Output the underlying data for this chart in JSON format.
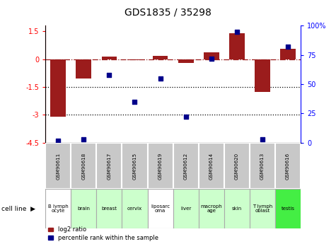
{
  "title": "GDS1835 / 35298",
  "samples": [
    "GSM90611",
    "GSM90618",
    "GSM90617",
    "GSM90615",
    "GSM90619",
    "GSM90612",
    "GSM90614",
    "GSM90620",
    "GSM90613",
    "GSM90616"
  ],
  "cell_lines": [
    "B lymph\nocyte",
    "brain",
    "breast",
    "cervix",
    "liposarc\noma",
    "liver",
    "macroph\nage",
    "skin",
    "T lymph\noblast",
    "testis"
  ],
  "log2_ratio": [
    -3.1,
    -1.05,
    0.12,
    -0.05,
    0.18,
    -0.2,
    0.35,
    1.4,
    -1.75,
    0.55
  ],
  "percentile_rank": [
    2,
    3,
    58,
    35,
    55,
    22,
    72,
    95,
    3,
    82
  ],
  "ylim_left": [
    -4.5,
    1.8
  ],
  "ylim_right": [
    0,
    100
  ],
  "left_yticks": [
    1.5,
    0,
    -1.5,
    -3.0,
    -4.5
  ],
  "left_yticklabels": [
    "1.5",
    "0",
    "-1.5",
    "-3",
    "-4.5"
  ],
  "right_yticks": [
    0,
    25,
    50,
    75,
    100
  ],
  "right_yticklabels": [
    "0",
    "25",
    "50",
    "75",
    "100%"
  ],
  "hline_values": [
    -1.5,
    -3.0
  ],
  "bar_color": "#9B1C1C",
  "dot_color": "#00008B",
  "cell_line_colors": [
    "#FFFFFF",
    "#CCFFCC",
    "#CCFFCC",
    "#CCFFCC",
    "#FFFFFF",
    "#CCFFCC",
    "#CCFFCC",
    "#CCFFCC",
    "#CCFFCC",
    "#44EE44"
  ],
  "gsm_box_color": "#C8C8C8",
  "gsm_box_edge": "#FFFFFF"
}
